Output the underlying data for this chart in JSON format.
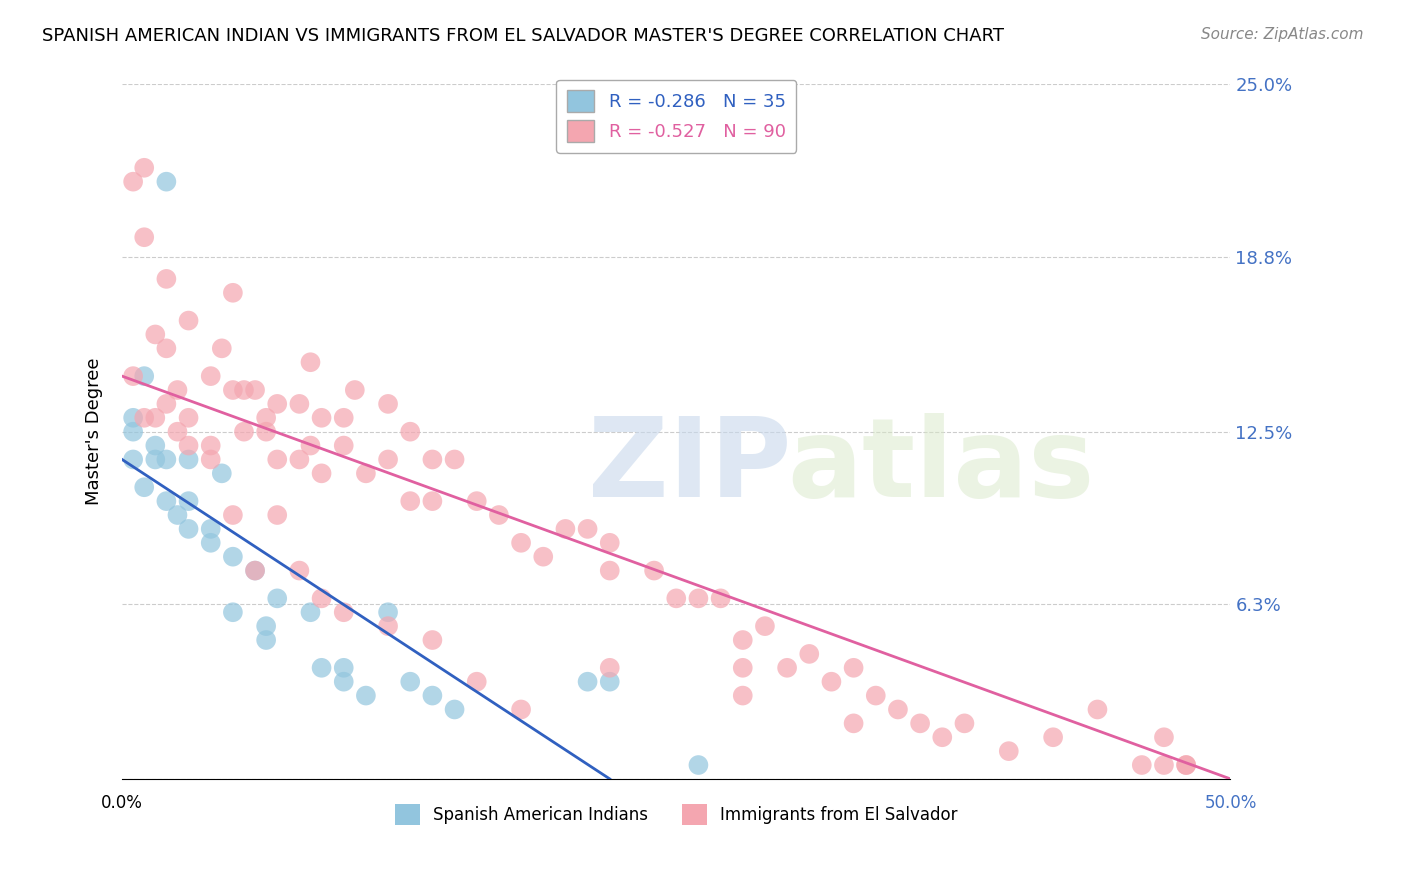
{
  "title": "SPANISH AMERICAN INDIAN VS IMMIGRANTS FROM EL SALVADOR MASTER'S DEGREE CORRELATION CHART",
  "source": "Source: ZipAtlas.com",
  "ylabel": "Master's Degree",
  "yticks": [
    0.0,
    0.063,
    0.125,
    0.188,
    0.25
  ],
  "ytick_labels": [
    "",
    "6.3%",
    "12.5%",
    "18.8%",
    "25.0%"
  ],
  "xlim": [
    0.0,
    0.5
  ],
  "ylim": [
    0.0,
    0.25
  ],
  "legend_blue_r": "R = -0.286",
  "legend_blue_n": "N = 35",
  "legend_pink_r": "R = -0.527",
  "legend_pink_n": "N = 90",
  "watermark_zip": "ZIP",
  "watermark_atlas": "atlas",
  "blue_color": "#92C5DE",
  "pink_color": "#F4A6B0",
  "line_blue": "#3060C0",
  "line_pink": "#E060A0",
  "blue_scatter_x": [
    0.02,
    0.01,
    0.005,
    0.005,
    0.005,
    0.01,
    0.015,
    0.015,
    0.02,
    0.02,
    0.025,
    0.03,
    0.03,
    0.03,
    0.04,
    0.04,
    0.045,
    0.05,
    0.05,
    0.06,
    0.065,
    0.065,
    0.07,
    0.085,
    0.09,
    0.1,
    0.1,
    0.11,
    0.12,
    0.13,
    0.14,
    0.15,
    0.21,
    0.22,
    0.26
  ],
  "blue_scatter_y": [
    0.215,
    0.145,
    0.13,
    0.125,
    0.115,
    0.105,
    0.12,
    0.115,
    0.115,
    0.1,
    0.095,
    0.115,
    0.1,
    0.09,
    0.09,
    0.085,
    0.11,
    0.08,
    0.06,
    0.075,
    0.055,
    0.05,
    0.065,
    0.06,
    0.04,
    0.04,
    0.035,
    0.03,
    0.06,
    0.035,
    0.03,
    0.025,
    0.035,
    0.035,
    0.005
  ],
  "blue_line_x": [
    0.0,
    0.22
  ],
  "blue_line_y": [
    0.115,
    0.0
  ],
  "pink_scatter_x": [
    0.005,
    0.01,
    0.01,
    0.015,
    0.015,
    0.02,
    0.02,
    0.025,
    0.025,
    0.03,
    0.03,
    0.04,
    0.04,
    0.045,
    0.05,
    0.05,
    0.055,
    0.055,
    0.06,
    0.065,
    0.065,
    0.07,
    0.07,
    0.08,
    0.08,
    0.085,
    0.085,
    0.09,
    0.09,
    0.1,
    0.1,
    0.105,
    0.11,
    0.12,
    0.12,
    0.13,
    0.13,
    0.14,
    0.14,
    0.15,
    0.16,
    0.17,
    0.18,
    0.19,
    0.2,
    0.21,
    0.22,
    0.22,
    0.24,
    0.25,
    0.26,
    0.27,
    0.28,
    0.28,
    0.29,
    0.3,
    0.31,
    0.32,
    0.33,
    0.34,
    0.35,
    0.36,
    0.38,
    0.4,
    0.42,
    0.44,
    0.46,
    0.47,
    0.48,
    0.005,
    0.01,
    0.02,
    0.03,
    0.04,
    0.05,
    0.06,
    0.07,
    0.08,
    0.09,
    0.1,
    0.12,
    0.14,
    0.16,
    0.18,
    0.22,
    0.28,
    0.33,
    0.37,
    0.47,
    0.48
  ],
  "pink_scatter_y": [
    0.145,
    0.195,
    0.13,
    0.16,
    0.13,
    0.155,
    0.135,
    0.14,
    0.125,
    0.13,
    0.12,
    0.145,
    0.12,
    0.155,
    0.175,
    0.14,
    0.14,
    0.125,
    0.14,
    0.13,
    0.125,
    0.135,
    0.115,
    0.135,
    0.115,
    0.15,
    0.12,
    0.13,
    0.11,
    0.13,
    0.12,
    0.14,
    0.11,
    0.135,
    0.115,
    0.125,
    0.1,
    0.115,
    0.1,
    0.115,
    0.1,
    0.095,
    0.085,
    0.08,
    0.09,
    0.09,
    0.085,
    0.075,
    0.075,
    0.065,
    0.065,
    0.065,
    0.05,
    0.04,
    0.055,
    0.04,
    0.045,
    0.035,
    0.04,
    0.03,
    0.025,
    0.02,
    0.02,
    0.01,
    0.015,
    0.025,
    0.005,
    0.005,
    0.005,
    0.215,
    0.22,
    0.18,
    0.165,
    0.115,
    0.095,
    0.075,
    0.095,
    0.075,
    0.065,
    0.06,
    0.055,
    0.05,
    0.035,
    0.025,
    0.04,
    0.03,
    0.02,
    0.015,
    0.015,
    0.005
  ],
  "pink_line_x": [
    0.0,
    0.5
  ],
  "pink_line_y": [
    0.145,
    0.0
  ]
}
